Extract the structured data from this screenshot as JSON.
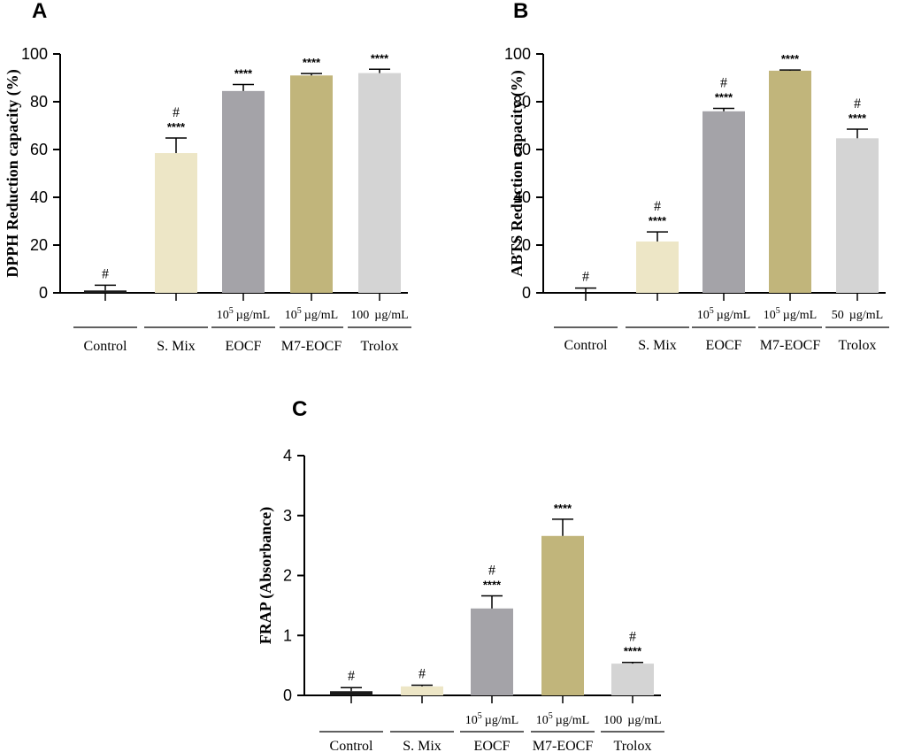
{
  "chart_data": [
    {
      "panel": "A",
      "type": "bar",
      "ylabel": "DPPH Reduction capacity (%)",
      "ylim": [
        0,
        100
      ],
      "yticks": [
        0,
        20,
        40,
        60,
        80,
        100
      ],
      "categories": [
        "Control",
        "S. Mix",
        "EOCF",
        "M7-EOCF",
        "Trolox"
      ],
      "concentrations": [
        {
          "base": "",
          "exp": "",
          "unit": ""
        },
        {
          "base": "",
          "exp": "",
          "unit": ""
        },
        {
          "base": "10",
          "exp": "5",
          "unit": "µg/mL"
        },
        {
          "base": "10",
          "exp": "5",
          "unit": "µg/mL"
        },
        {
          "base": "100",
          "exp": "",
          "unit": "µg/mL"
        }
      ],
      "values": [
        1,
        58.5,
        84.5,
        91,
        92
      ],
      "errors": [
        2.2,
        6.3,
        2.7,
        0.8,
        1.6
      ],
      "significance": [
        "",
        "****",
        "****",
        "****",
        "****"
      ],
      "hash": [
        "#",
        "#",
        "",
        "",
        ""
      ],
      "colors": [
        "#1a1a1a",
        "#ede6c6",
        "#a4a3a8",
        "#c1b57b",
        "#d4d4d4"
      ]
    },
    {
      "panel": "B",
      "type": "bar",
      "ylabel": "ABTS Reduction capacity (%)",
      "ylim": [
        0,
        100
      ],
      "yticks": [
        0,
        20,
        40,
        60,
        80,
        100
      ],
      "categories": [
        "Control",
        "S. Mix",
        "EOCF",
        "M7-EOCF",
        "Trolox"
      ],
      "concentrations": [
        {
          "base": "",
          "exp": "",
          "unit": ""
        },
        {
          "base": "",
          "exp": "",
          "unit": ""
        },
        {
          "base": "10",
          "exp": "5",
          "unit": "µg/mL"
        },
        {
          "base": "10",
          "exp": "5",
          "unit": "µg/mL"
        },
        {
          "base": "50",
          "exp": "",
          "unit": "µg/mL"
        }
      ],
      "values": [
        0,
        21.5,
        76,
        93,
        64.7
      ],
      "errors": [
        2,
        4,
        1.2,
        0.3,
        3.8
      ],
      "significance": [
        "",
        "****",
        "****",
        "****",
        "****"
      ],
      "hash": [
        "#",
        "#",
        "#",
        "",
        "#"
      ],
      "colors": [
        "#1a1a1a",
        "#ede6c6",
        "#a4a3a8",
        "#c1b57b",
        "#d4d4d4"
      ]
    },
    {
      "panel": "C",
      "type": "bar",
      "ylabel": "FRAP (Absorbance)",
      "ylim": [
        0,
        4
      ],
      "yticks": [
        0,
        1,
        2,
        3,
        4
      ],
      "categories": [
        "Control",
        "S. Mix",
        "EOCF",
        "M7-EOCF",
        "Trolox"
      ],
      "concentrations": [
        {
          "base": "",
          "exp": "",
          "unit": ""
        },
        {
          "base": "",
          "exp": "",
          "unit": ""
        },
        {
          "base": "10",
          "exp": "5",
          "unit": "µg/mL"
        },
        {
          "base": "10",
          "exp": "5",
          "unit": "µg/mL"
        },
        {
          "base": "100",
          "exp": "",
          "unit": "µg/mL"
        }
      ],
      "values": [
        0.07,
        0.15,
        1.45,
        2.66,
        0.53
      ],
      "errors": [
        0.06,
        0.02,
        0.21,
        0.28,
        0.02
      ],
      "significance": [
        "",
        "",
        "****",
        "****",
        "****"
      ],
      "hash": [
        "#",
        "#",
        "#",
        "",
        "#"
      ],
      "colors": [
        "#1a1a1a",
        "#ede6c6",
        "#a4a3a8",
        "#c1b57b",
        "#d4d4d4"
      ]
    }
  ]
}
